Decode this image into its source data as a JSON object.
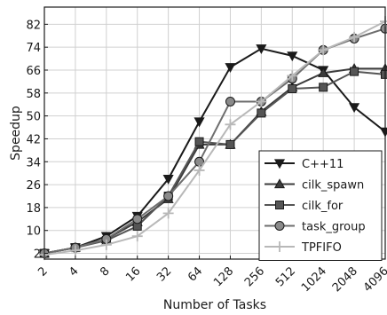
{
  "chart_data": {
    "type": "line",
    "xlabel": "Number of Tasks",
    "ylabel": "Speedup",
    "categories": [
      "2",
      "4",
      "8",
      "16",
      "32",
      "64",
      "128",
      "256",
      "512",
      "1024",
      "2048",
      "4096"
    ],
    "yticks": [
      2,
      10,
      18,
      26,
      34,
      42,
      50,
      58,
      66,
      74,
      82
    ],
    "ylim": [
      0,
      88
    ],
    "grid": true,
    "legend_position": "lower-right",
    "series": [
      {
        "name": "C++11",
        "marker": "triangle-down",
        "color": "#1a1a1a",
        "values": [
          2,
          4,
          8,
          15,
          28,
          48,
          67,
          73.5,
          71,
          66,
          53,
          44.5
        ]
      },
      {
        "name": "cilk_spawn",
        "marker": "triangle-up",
        "color": "#3c3c3c",
        "values": [
          2,
          4,
          7,
          13,
          21,
          40,
          40,
          51.5,
          60,
          65,
          66.5,
          66.5
        ]
      },
      {
        "name": "cilk_for",
        "marker": "square",
        "color": "#555555",
        "values": [
          2,
          4,
          6.5,
          11.5,
          22,
          41,
          40,
          51,
          59.5,
          60,
          65.5,
          64.5
        ]
      },
      {
        "name": "task_group",
        "marker": "circle",
        "color": "#6e6e6e",
        "values": [
          2,
          4,
          7,
          14,
          22,
          34,
          55,
          55,
          63,
          73,
          77,
          80.5
        ]
      },
      {
        "name": "TPFIFO",
        "marker": "plus",
        "color": "#b8b8b8",
        "values": [
          1.5,
          3,
          5,
          8,
          16,
          31,
          47,
          55,
          64,
          73,
          77.5,
          83
        ]
      }
    ]
  }
}
